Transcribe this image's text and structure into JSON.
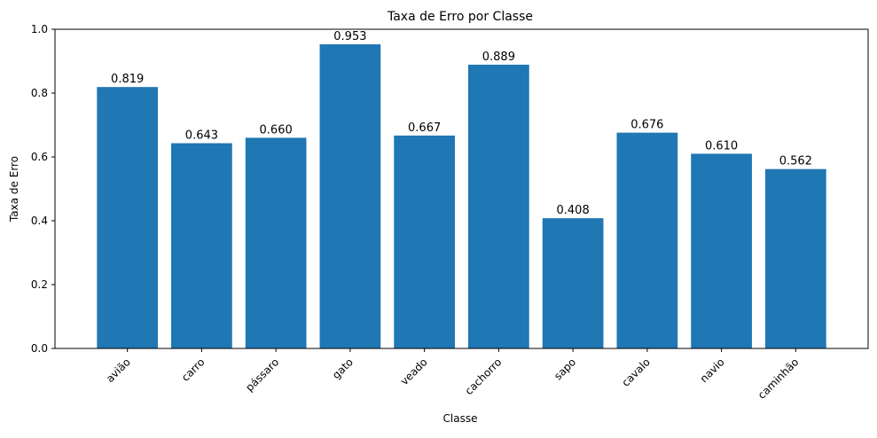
{
  "chart_data": {
    "type": "bar",
    "title": "Taxa de Erro por Classe",
    "xlabel": "Classe",
    "ylabel": "Taxa de Erro",
    "categories": [
      "avião",
      "carro",
      "pássaro",
      "gato",
      "veado",
      "cachorro",
      "sapo",
      "cavalo",
      "navio",
      "caminhão"
    ],
    "values": [
      0.819,
      0.643,
      0.66,
      0.953,
      0.667,
      0.889,
      0.408,
      0.676,
      0.61,
      0.562
    ],
    "value_labels": [
      "0.819",
      "0.643",
      "0.660",
      "0.953",
      "0.667",
      "0.889",
      "0.408",
      "0.676",
      "0.610",
      "0.562"
    ],
    "ylim": [
      0,
      1.0
    ],
    "yticks": [
      0.0,
      0.2,
      0.4,
      0.6,
      0.8,
      1.0
    ],
    "ytick_labels": [
      "0.0",
      "0.2",
      "0.4",
      "0.6",
      "0.8",
      "1.0"
    ],
    "grid": false,
    "bar_color": "#1f77b4"
  }
}
